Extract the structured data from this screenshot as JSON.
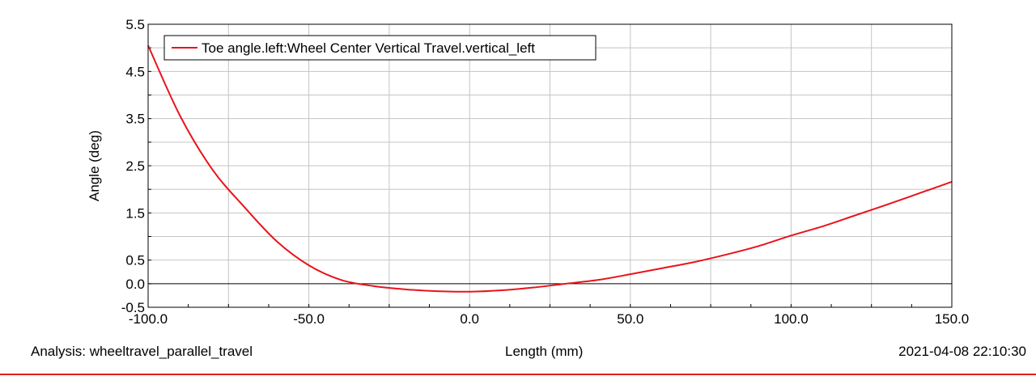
{
  "chart_data": {
    "type": "line",
    "xlabel": "Length (mm)",
    "ylabel": "Angle (deg)",
    "xlim": [
      -100,
      150
    ],
    "ylim": [
      -0.5,
      5.5
    ],
    "x_ticks": [
      "-100.0",
      "-50.0",
      "0.0",
      "50.0",
      "100.0",
      "150.0"
    ],
    "y_ticks": [
      "-0.5",
      "0.0",
      "0.5",
      "1.5",
      "2.5",
      "3.5",
      "4.5",
      "5.5"
    ],
    "grid": true,
    "legend_position": "top-left",
    "series": [
      {
        "name": "Toe angle.left:Wheel Center Vertical Travel.vertical_left",
        "color": "#e8141b",
        "x": [
          -100,
          -90,
          -80,
          -70,
          -60,
          -50,
          -40,
          -30,
          -20,
          -10,
          0,
          10,
          20,
          30,
          40,
          50,
          60,
          70,
          80,
          90,
          100,
          110,
          120,
          130,
          140,
          150
        ],
        "y": [
          5.05,
          3.55,
          2.42,
          1.62,
          0.9,
          0.39,
          0.08,
          -0.05,
          -0.12,
          -0.16,
          -0.17,
          -0.14,
          -0.08,
          0.0,
          0.08,
          0.2,
          0.33,
          0.46,
          0.62,
          0.8,
          1.02,
          1.22,
          1.45,
          1.68,
          1.92,
          2.16
        ]
      }
    ]
  },
  "footer": {
    "analysis": "Analysis:  wheeltravel_parallel_travel",
    "timestamp": "2021-04-08 22:10:30"
  }
}
